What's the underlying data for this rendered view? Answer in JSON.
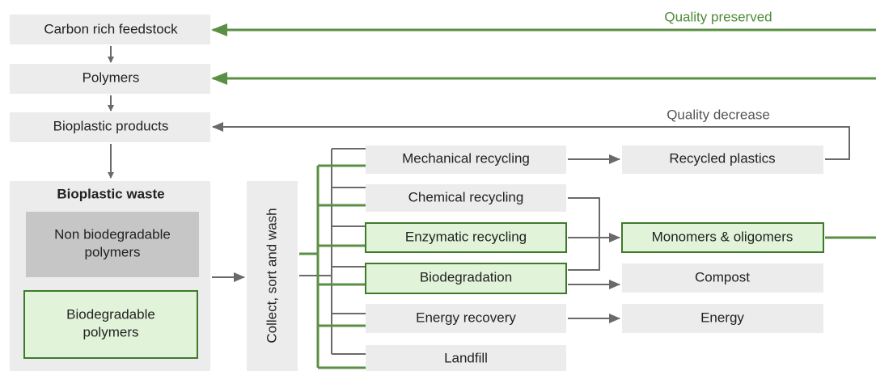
{
  "labels": {
    "quality_preserved": "Quality preserved",
    "quality_decrease": "Quality decrease"
  },
  "nodes": {
    "feedstock": "Carbon rich feedstock",
    "polymers": "Polymers",
    "products": "Bioplastic products",
    "waste": "Bioplastic waste",
    "non_biodegradable": [
      "Non biodegradable",
      "polymers"
    ],
    "biodegradable": [
      "Biodegradable",
      "polymers"
    ],
    "collect": "Collect, sort and wash",
    "mechanical": "Mechanical recycling",
    "chemical": "Chemical recycling",
    "enzymatic": "Enzymatic recycling",
    "biodegradation": "Biodegradation",
    "energy_recovery": "Energy recovery",
    "landfill": "Landfill",
    "recycled": "Recycled plastics",
    "monomers": "Monomers & oligomers",
    "compost": "Compost",
    "energy": "Energy"
  }
}
